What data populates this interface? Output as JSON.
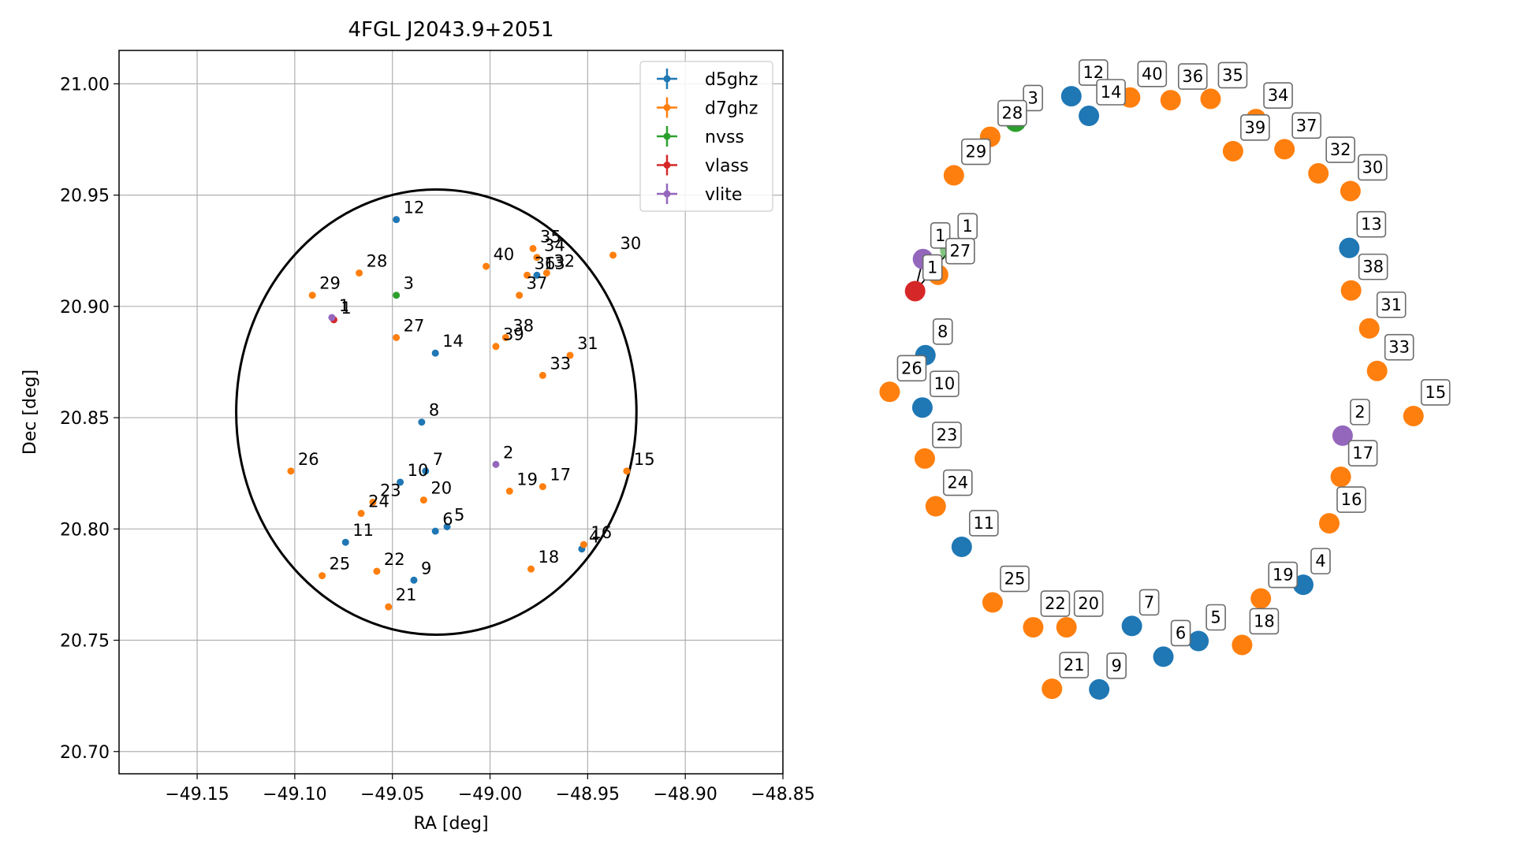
{
  "chart_data": [
    {
      "type": "scatter",
      "title": "4FGL J2043.9+2051",
      "xlabel": "RA [deg]",
      "ylabel": "Dec [deg]",
      "xlim": [
        -49.19,
        -48.85
      ],
      "ylim": [
        20.69,
        21.015
      ],
      "xticks": [
        -49.15,
        -49.1,
        -49.05,
        -49.0,
        -48.95,
        -48.9,
        -48.85
      ],
      "xtick_labels": [
        "−49.15",
        "−49.10",
        "−49.05",
        "−49.00",
        "−48.95",
        "−48.90",
        "−48.85"
      ],
      "yticks": [
        20.7,
        20.75,
        20.8,
        20.85,
        20.9,
        20.95,
        21.0
      ],
      "ytick_labels": [
        "20.70",
        "20.75",
        "20.80",
        "20.85",
        "20.90",
        "20.95",
        "21.00"
      ],
      "grid": true,
      "legend_position": "top-right",
      "ellipse": {
        "center": [
          -49.0275,
          20.8525
        ],
        "semi_axes": [
          0.1025,
          0.1
        ],
        "angle_deg": 0
      },
      "series": [
        {
          "name": "d5ghz",
          "color": "#1f77b4",
          "points": [
            {
              "id": "12",
              "x": -49.048,
              "y": 20.939
            },
            {
              "id": "14",
              "x": -49.028,
              "y": 20.879
            },
            {
              "id": "13",
              "x": -48.976,
              "y": 20.914
            },
            {
              "id": "8",
              "x": -49.035,
              "y": 20.848
            },
            {
              "id": "10",
              "x": -49.046,
              "y": 20.821
            },
            {
              "id": "7",
              "x": -49.033,
              "y": 20.826
            },
            {
              "id": "6",
              "x": -49.028,
              "y": 20.799
            },
            {
              "id": "5",
              "x": -49.022,
              "y": 20.801
            },
            {
              "id": "11",
              "x": -49.074,
              "y": 20.794
            },
            {
              "id": "9",
              "x": -49.039,
              "y": 20.777
            },
            {
              "id": "4",
              "x": -48.953,
              "y": 20.791
            }
          ]
        },
        {
          "name": "d7ghz",
          "color": "#ff7f0e",
          "points": [
            {
              "id": "28",
              "x": -49.067,
              "y": 20.915
            },
            {
              "id": "29",
              "x": -49.091,
              "y": 20.905
            },
            {
              "id": "40",
              "x": -49.002,
              "y": 20.918
            },
            {
              "id": "35",
              "x": -48.978,
              "y": 20.926
            },
            {
              "id": "34",
              "x": -48.976,
              "y": 20.922
            },
            {
              "id": "36",
              "x": -48.981,
              "y": 20.914
            },
            {
              "id": "32",
              "x": -48.971,
              "y": 20.915
            },
            {
              "id": "30",
              "x": -48.937,
              "y": 20.923
            },
            {
              "id": "37",
              "x": -48.985,
              "y": 20.905
            },
            {
              "id": "27",
              "x": -49.048,
              "y": 20.886
            },
            {
              "id": "38",
              "x": -48.992,
              "y": 20.886
            },
            {
              "id": "39",
              "x": -48.997,
              "y": 20.882
            },
            {
              "id": "31",
              "x": -48.959,
              "y": 20.878
            },
            {
              "id": "33",
              "x": -48.973,
              "y": 20.869
            },
            {
              "id": "26",
              "x": -49.102,
              "y": 20.826
            },
            {
              "id": "20",
              "x": -49.034,
              "y": 20.813
            },
            {
              "id": "23",
              "x": -49.06,
              "y": 20.812
            },
            {
              "id": "24",
              "x": -49.066,
              "y": 20.807
            },
            {
              "id": "19",
              "x": -48.99,
              "y": 20.817
            },
            {
              "id": "17",
              "x": -48.973,
              "y": 20.819
            },
            {
              "id": "15",
              "x": -48.93,
              "y": 20.826
            },
            {
              "id": "16",
              "x": -48.952,
              "y": 20.793
            },
            {
              "id": "18",
              "x": -48.979,
              "y": 20.782
            },
            {
              "id": "22",
              "x": -49.058,
              "y": 20.781
            },
            {
              "id": "25",
              "x": -49.086,
              "y": 20.779
            },
            {
              "id": "21",
              "x": -49.052,
              "y": 20.765
            }
          ]
        },
        {
          "name": "nvss",
          "color": "#2ca02c",
          "points": [
            {
              "id": "3",
              "x": -49.048,
              "y": 20.905
            }
          ]
        },
        {
          "name": "vlass",
          "color": "#d62728",
          "points": [
            {
              "id": "1",
              "x": -49.08,
              "y": 20.894
            }
          ]
        },
        {
          "name": "vlite",
          "color": "#9467bd",
          "points": [
            {
              "id": "1",
              "x": -49.081,
              "y": 20.895
            },
            {
              "id": "2",
              "x": -48.997,
              "y": 20.829
            }
          ]
        }
      ]
    },
    {
      "type": "scatter",
      "title": "",
      "xlabel": "",
      "ylabel": "",
      "axes_visible": false,
      "nodes": [
        {
          "label": "12",
          "color": "#1f77b4",
          "x": 0.337,
          "y": 0.983
        },
        {
          "label": "40",
          "color": "#ff7f0e",
          "x": 0.434,
          "y": 0.981
        },
        {
          "label": "36",
          "color": "#ff7f0e",
          "x": 0.501,
          "y": 0.977
        },
        {
          "label": "35",
          "color": "#ff7f0e",
          "x": 0.567,
          "y": 0.979
        },
        {
          "label": "14",
          "color": "#1f77b4",
          "x": 0.366,
          "y": 0.953
        },
        {
          "label": "3",
          "color": "#2ca02c",
          "x": 0.245,
          "y": 0.944
        },
        {
          "label": "28",
          "color": "#ff7f0e",
          "x": 0.203,
          "y": 0.921
        },
        {
          "label": "34",
          "color": "#ff7f0e",
          "x": 0.642,
          "y": 0.948
        },
        {
          "label": "39",
          "color": "#ff7f0e",
          "x": 0.604,
          "y": 0.899
        },
        {
          "label": "37",
          "color": "#ff7f0e",
          "x": 0.689,
          "y": 0.902
        },
        {
          "label": "29",
          "color": "#ff7f0e",
          "x": 0.143,
          "y": 0.862
        },
        {
          "label": "32",
          "color": "#ff7f0e",
          "x": 0.745,
          "y": 0.865
        },
        {
          "label": "30",
          "color": "#ff7f0e",
          "x": 0.798,
          "y": 0.838
        },
        {
          "label": "13",
          "color": "#1f77b4",
          "x": 0.796,
          "y": 0.751
        },
        {
          "label": "1",
          "color": "#2ca02c",
          "x": 0.137,
          "y": 0.748,
          "alpha": 0.6
        },
        {
          "label": "1",
          "color": "#9467bd",
          "x": 0.092,
          "y": 0.734
        },
        {
          "label": "27",
          "color": "#ff7f0e",
          "x": 0.117,
          "y": 0.71
        },
        {
          "label": "1",
          "color": "#d62728",
          "x": 0.079,
          "y": 0.685
        },
        {
          "label": "38",
          "color": "#ff7f0e",
          "x": 0.799,
          "y": 0.686
        },
        {
          "label": "31",
          "color": "#ff7f0e",
          "x": 0.829,
          "y": 0.628
        },
        {
          "label": "8",
          "color": "#1f77b4",
          "x": 0.096,
          "y": 0.587
        },
        {
          "label": "33",
          "color": "#ff7f0e",
          "x": 0.842,
          "y": 0.563
        },
        {
          "label": "26",
          "color": "#ff7f0e",
          "x": 0.037,
          "y": 0.531
        },
        {
          "label": "10",
          "color": "#1f77b4",
          "x": 0.091,
          "y": 0.507
        },
        {
          "label": "15",
          "color": "#ff7f0e",
          "x": 0.902,
          "y": 0.494
        },
        {
          "label": "2",
          "color": "#9467bd",
          "x": 0.785,
          "y": 0.464
        },
        {
          "label": "23",
          "color": "#ff7f0e",
          "x": 0.095,
          "y": 0.429
        },
        {
          "label": "17",
          "color": "#ff7f0e",
          "x": 0.782,
          "y": 0.401
        },
        {
          "label": "24",
          "color": "#ff7f0e",
          "x": 0.113,
          "y": 0.356
        },
        {
          "label": "16",
          "color": "#ff7f0e",
          "x": 0.763,
          "y": 0.33
        },
        {
          "label": "11",
          "color": "#1f77b4",
          "x": 0.156,
          "y": 0.294
        },
        {
          "label": "25",
          "color": "#ff7f0e",
          "x": 0.207,
          "y": 0.209
        },
        {
          "label": "4",
          "color": "#1f77b4",
          "x": 0.72,
          "y": 0.236
        },
        {
          "label": "19",
          "color": "#ff7f0e",
          "x": 0.65,
          "y": 0.215
        },
        {
          "label": "22",
          "color": "#ff7f0e",
          "x": 0.274,
          "y": 0.171
        },
        {
          "label": "20",
          "color": "#ff7f0e",
          "x": 0.329,
          "y": 0.171
        },
        {
          "label": "7",
          "color": "#1f77b4",
          "x": 0.437,
          "y": 0.173
        },
        {
          "label": "5",
          "color": "#1f77b4",
          "x": 0.547,
          "y": 0.15
        },
        {
          "label": "18",
          "color": "#ff7f0e",
          "x": 0.619,
          "y": 0.144
        },
        {
          "label": "6",
          "color": "#1f77b4",
          "x": 0.489,
          "y": 0.126
        },
        {
          "label": "21",
          "color": "#ff7f0e",
          "x": 0.305,
          "y": 0.077
        },
        {
          "label": "9",
          "color": "#1f77b4",
          "x": 0.383,
          "y": 0.076
        }
      ],
      "links": [
        [
          14,
          17
        ],
        [
          15,
          17
        ]
      ]
    }
  ]
}
